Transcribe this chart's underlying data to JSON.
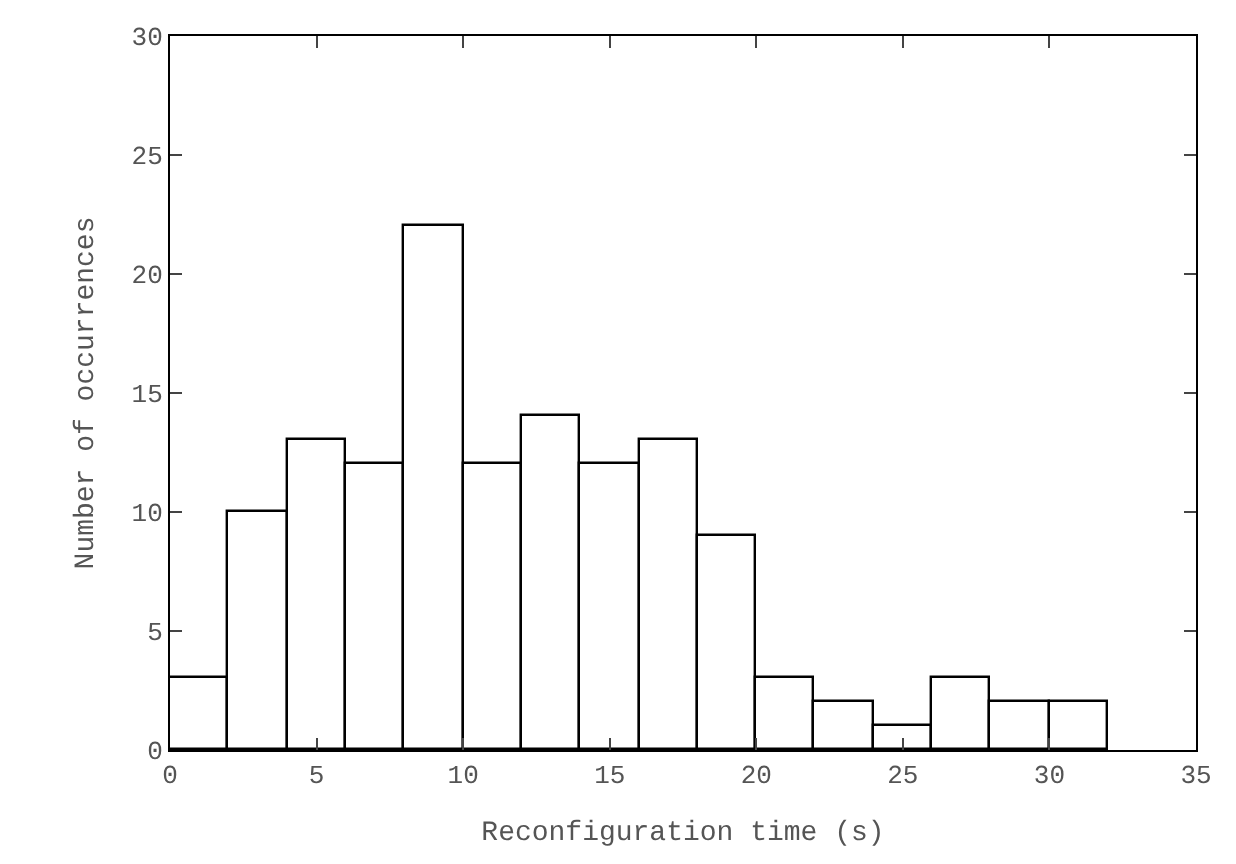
{
  "chart_data": {
    "type": "histogram",
    "xlabel": "Reconfiguration time (s)",
    "ylabel": "Number of occurrences",
    "bins": [
      0,
      2,
      4,
      6,
      8,
      10,
      12,
      14,
      16,
      18,
      20,
      22,
      24,
      26,
      28,
      30,
      32
    ],
    "values": [
      3,
      10,
      13,
      12,
      22,
      12,
      14,
      12,
      13,
      9,
      3,
      2,
      1,
      3,
      2,
      2
    ],
    "color": "#000000",
    "xlim": [
      0,
      35
    ],
    "xticks": [
      0,
      5,
      10,
      15,
      20,
      25,
      30,
      35
    ],
    "ylim": [
      0,
      30
    ],
    "yticks": [
      0,
      5,
      10,
      15,
      20,
      25,
      30
    ]
  }
}
